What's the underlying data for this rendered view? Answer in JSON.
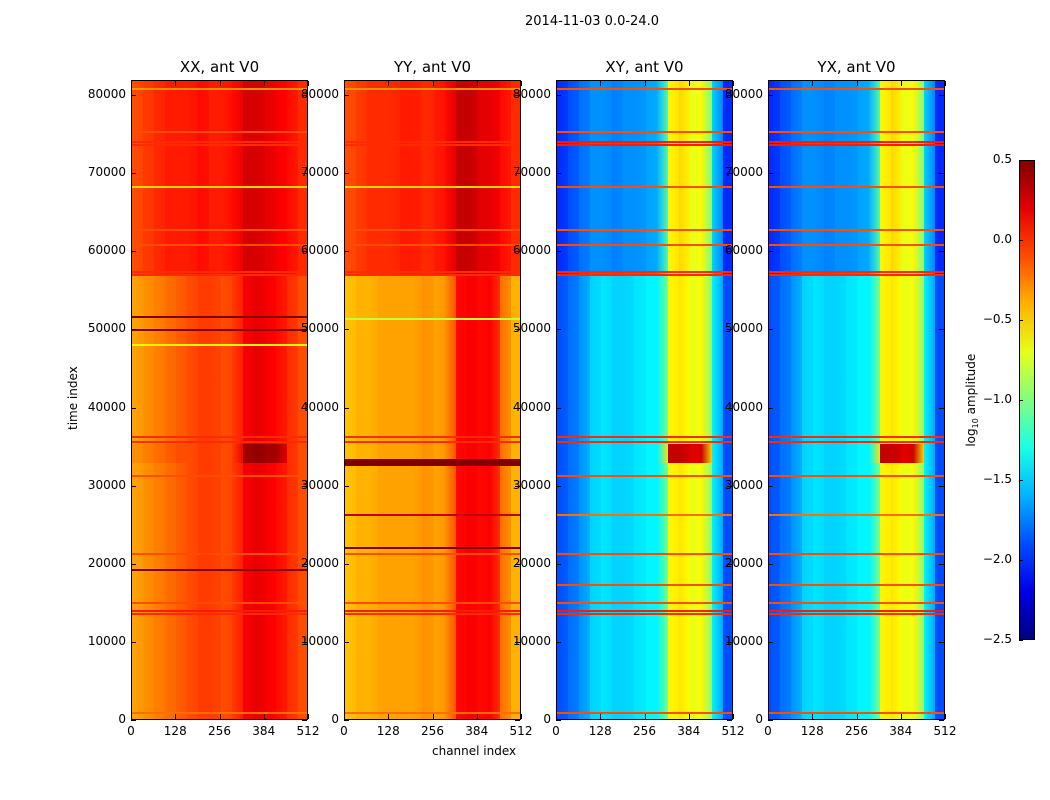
{
  "chart_data": {
    "type": "heatmap",
    "suptitle": "2014-11-03 0.0-24.0",
    "xlabel": "channel index",
    "ylabel": "time index",
    "xlim": [
      0,
      512
    ],
    "ylim": [
      0,
      81920
    ],
    "xticks": [
      "0",
      "128",
      "256",
      "384",
      "512"
    ],
    "yticks": [
      "0",
      "10000",
      "20000",
      "30000",
      "40000",
      "50000",
      "60000",
      "70000",
      "80000"
    ],
    "colorbar": {
      "label_main": "log",
      "label_sub": "10",
      "label_rest": " amplitude",
      "range": [
        -2.5,
        0.5
      ],
      "colormap": "jet",
      "ticks": [
        "0.5",
        "0.0",
        "−0.5",
        "−1.0",
        "−1.5",
        "−2.0",
        "−2.5"
      ],
      "tick_values": [
        0.5,
        0.0,
        -0.5,
        -1.0,
        -1.5,
        -2.0,
        -2.5
      ]
    },
    "channel_bin_width": 32,
    "panels": [
      {
        "title": "XX, ant V0",
        "segments": [
          {
            "t": [
              0,
              57000
            ],
            "profile": [
              -0.35,
              -0.3,
              -0.25,
              -0.2,
              -0.15,
              -0.1,
              -0.05,
              -0.05,
              -0.1,
              -0.05,
              0.15,
              0.2,
              0.15,
              0.1,
              0.0,
              -0.1
            ]
          },
          {
            "t": [
              57000,
              81920
            ],
            "profile": [
              -0.1,
              -0.05,
              0.0,
              0.05,
              0.05,
              0.05,
              0.1,
              0.05,
              0.05,
              0.1,
              0.25,
              0.25,
              0.2,
              0.15,
              0.1,
              0.0
            ]
          },
          {
            "t": [
              33000,
              35500
            ],
            "profile": [
              -0.3,
              -0.25,
              -0.2,
              -0.15,
              -0.1,
              -0.1,
              -0.05,
              -0.05,
              -0.1,
              -0.05,
              0.4,
              0.45,
              0.4,
              0.4,
              0.0,
              -0.1
            ]
          }
        ],
        "lines": [
          [
            1200,
            -0.2
          ],
          [
            13800,
            0.0
          ],
          [
            14200,
            0.05
          ],
          [
            15200,
            -0.1
          ],
          [
            19500,
            0.5
          ],
          [
            21500,
            -0.1
          ],
          [
            31500,
            -0.1
          ],
          [
            35800,
            0.0
          ],
          [
            36500,
            0.0
          ],
          [
            48200,
            -0.6
          ],
          [
            50200,
            0.5
          ],
          [
            51800,
            0.5
          ],
          [
            57200,
            0.0
          ],
          [
            57600,
            0.0
          ],
          [
            61000,
            -0.1
          ],
          [
            63000,
            -0.1
          ],
          [
            68500,
            -0.5
          ],
          [
            73800,
            0.0
          ],
          [
            74200,
            0.0
          ],
          [
            75500,
            -0.1
          ],
          [
            81000,
            -0.3
          ]
        ]
      },
      {
        "title": "YY, ant V0",
        "segments": [
          {
            "t": [
              0,
              57000
            ],
            "profile": [
              -0.45,
              -0.4,
              -0.4,
              -0.35,
              -0.35,
              -0.35,
              -0.35,
              -0.3,
              -0.35,
              -0.3,
              0.1,
              0.15,
              0.1,
              0.15,
              -0.2,
              -0.4
            ]
          },
          {
            "t": [
              57000,
              81920
            ],
            "profile": [
              -0.1,
              -0.05,
              0.0,
              0.0,
              0.0,
              0.05,
              0.05,
              0.0,
              0.05,
              0.1,
              0.3,
              0.3,
              0.2,
              0.2,
              0.1,
              0.0
            ]
          },
          {
            "t": [
              32700,
              33600
            ],
            "profile": [
              0.5,
              0.5,
              0.5,
              0.5,
              0.5,
              0.5,
              0.5,
              0.5,
              0.5,
              0.5,
              0.5,
              0.5,
              0.5,
              0.5,
              0.5,
              0.5
            ]
          }
        ],
        "lines": [
          [
            1200,
            -0.2
          ],
          [
            13800,
            0.0
          ],
          [
            14200,
            0.05
          ],
          [
            15200,
            -0.1
          ],
          [
            21500,
            -0.1
          ],
          [
            22300,
            0.5
          ],
          [
            26500,
            0.3
          ],
          [
            35800,
            0.0
          ],
          [
            36500,
            0.0
          ],
          [
            51600,
            -0.8
          ],
          [
            57200,
            0.0
          ],
          [
            57600,
            0.0
          ],
          [
            61000,
            -0.1
          ],
          [
            63000,
            -0.1
          ],
          [
            68500,
            -0.5
          ],
          [
            73800,
            0.0
          ],
          [
            74200,
            0.0
          ],
          [
            81000,
            -0.3
          ]
        ]
      },
      {
        "title": "XY, ant V0",
        "segments": [
          {
            "t": [
              0,
              57000
            ],
            "profile": [
              -1.9,
              -1.8,
              -1.7,
              -1.5,
              -1.45,
              -1.5,
              -1.5,
              -1.45,
              -1.4,
              -1.4,
              -0.6,
              -0.55,
              -0.7,
              -0.6,
              -1.4,
              -1.9
            ]
          },
          {
            "t": [
              57000,
              81920
            ],
            "profile": [
              -2.0,
              -1.9,
              -1.8,
              -1.7,
              -1.7,
              -1.75,
              -1.7,
              -1.7,
              -1.65,
              -1.6,
              -0.6,
              -0.5,
              -0.7,
              -0.6,
              -1.5,
              -2.0
            ]
          },
          {
            "t": [
              33000,
              35500
            ],
            "profile": [
              -1.9,
              -1.8,
              -1.7,
              -1.5,
              -1.45,
              -1.5,
              -1.5,
              -1.45,
              -1.4,
              -1.4,
              0.3,
              0.3,
              0.2,
              0.3,
              -1.4,
              -1.9
            ]
          }
        ],
        "lines": [
          [
            1200,
            -0.1
          ],
          [
            13800,
            0.0
          ],
          [
            14200,
            0.05
          ],
          [
            15200,
            -0.1
          ],
          [
            17500,
            -0.1
          ],
          [
            21500,
            -0.1
          ],
          [
            26500,
            -0.2
          ],
          [
            31500,
            -0.1
          ],
          [
            35800,
            0.0
          ],
          [
            36500,
            0.0
          ],
          [
            57200,
            0.0
          ],
          [
            57600,
            0.0
          ],
          [
            61000,
            -0.1
          ],
          [
            63000,
            -0.1
          ],
          [
            68500,
            -0.1
          ],
          [
            73800,
            0.05
          ],
          [
            74200,
            0.05
          ],
          [
            75500,
            -0.1
          ],
          [
            81000,
            -0.1
          ]
        ]
      },
      {
        "title": "YX, ant V0",
        "segments": [
          {
            "t": [
              0,
              57000
            ],
            "profile": [
              -1.9,
              -1.8,
              -1.7,
              -1.5,
              -1.45,
              -1.5,
              -1.5,
              -1.45,
              -1.4,
              -1.4,
              -0.6,
              -0.55,
              -0.7,
              -0.6,
              -1.4,
              -1.9
            ]
          },
          {
            "t": [
              57000,
              81920
            ],
            "profile": [
              -2.0,
              -1.9,
              -1.8,
              -1.7,
              -1.7,
              -1.75,
              -1.7,
              -1.7,
              -1.65,
              -1.6,
              -0.6,
              -0.5,
              -0.7,
              -0.6,
              -1.5,
              -2.0
            ]
          },
          {
            "t": [
              33000,
              35500
            ],
            "profile": [
              -1.9,
              -1.8,
              -1.7,
              -1.5,
              -1.45,
              -1.5,
              -1.5,
              -1.45,
              -1.4,
              -1.4,
              0.3,
              0.3,
              0.2,
              0.3,
              -1.4,
              -1.9
            ]
          }
        ],
        "lines": [
          [
            1200,
            -0.1
          ],
          [
            13800,
            0.0
          ],
          [
            14200,
            0.05
          ],
          [
            15200,
            -0.1
          ],
          [
            17500,
            -0.1
          ],
          [
            21500,
            -0.1
          ],
          [
            26500,
            -0.2
          ],
          [
            31500,
            -0.1
          ],
          [
            35800,
            0.0
          ],
          [
            36500,
            0.0
          ],
          [
            57200,
            0.0
          ],
          [
            57600,
            0.0
          ],
          [
            61000,
            -0.1
          ],
          [
            63000,
            -0.1
          ],
          [
            68500,
            -0.1
          ],
          [
            73800,
            0.05
          ],
          [
            74200,
            0.05
          ],
          [
            75500,
            -0.1
          ],
          [
            81000,
            -0.1
          ]
        ]
      }
    ]
  }
}
